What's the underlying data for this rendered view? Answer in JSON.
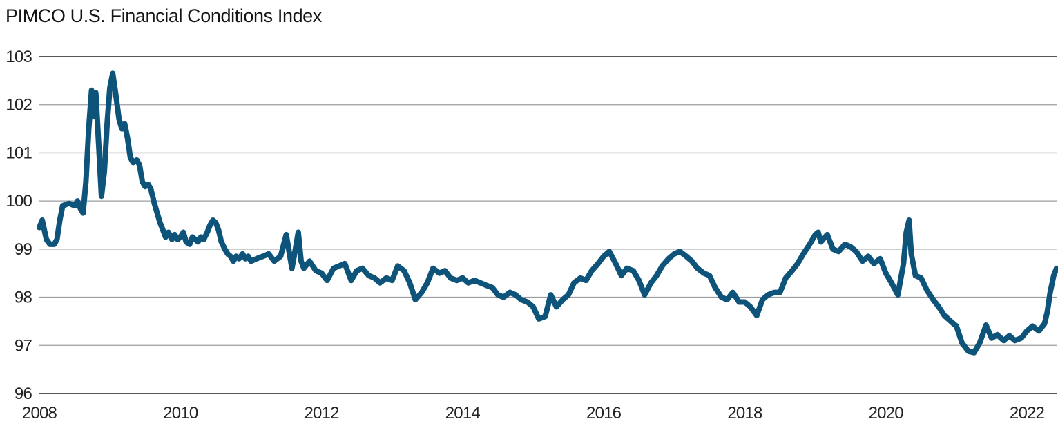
{
  "header": {
    "title": "PIMCO U.S. Financial Conditions Index"
  },
  "colors": {
    "line": "#0E547A",
    "grid_inner": "#9b9da0",
    "grid_frame": "#54565a",
    "tick_text": "#232323",
    "title_text": "#141414",
    "background": "#ffffff"
  },
  "chart_data": {
    "type": "line",
    "title": "PIMCO U.S. Financial Conditions Index",
    "xlabel": "",
    "ylabel": "",
    "legend": "none",
    "grid": "horizontal",
    "xlim": [
      2008,
      2022.45
    ],
    "ylim": [
      96,
      103
    ],
    "x_ticks": [
      "2008",
      "2010",
      "2012",
      "2014",
      "2016",
      "2018",
      "2020",
      "2022"
    ],
    "y_ticks": [
      "103",
      "102",
      "101",
      "100",
      "99",
      "98",
      "97",
      "96"
    ],
    "series": [
      {
        "name": "PIMCO U.S. Financial Conditions Index",
        "color": "#0E547A",
        "points": [
          [
            2008.0,
            99.45
          ],
          [
            2008.04,
            99.6
          ],
          [
            2008.1,
            99.2
          ],
          [
            2008.15,
            99.1
          ],
          [
            2008.21,
            99.1
          ],
          [
            2008.25,
            99.2
          ],
          [
            2008.29,
            99.6
          ],
          [
            2008.33,
            99.9
          ],
          [
            2008.42,
            99.95
          ],
          [
            2008.5,
            99.9
          ],
          [
            2008.54,
            100.0
          ],
          [
            2008.58,
            99.85
          ],
          [
            2008.62,
            99.75
          ],
          [
            2008.66,
            100.4
          ],
          [
            2008.7,
            101.5
          ],
          [
            2008.74,
            102.3
          ],
          [
            2008.77,
            101.75
          ],
          [
            2008.8,
            102.25
          ],
          [
            2008.84,
            101.2
          ],
          [
            2008.88,
            100.1
          ],
          [
            2008.92,
            100.6
          ],
          [
            2008.96,
            101.6
          ],
          [
            2009.0,
            102.35
          ],
          [
            2009.04,
            102.65
          ],
          [
            2009.08,
            102.25
          ],
          [
            2009.13,
            101.7
          ],
          [
            2009.17,
            101.5
          ],
          [
            2009.21,
            101.6
          ],
          [
            2009.25,
            101.3
          ],
          [
            2009.29,
            100.9
          ],
          [
            2009.33,
            100.8
          ],
          [
            2009.38,
            100.85
          ],
          [
            2009.42,
            100.75
          ],
          [
            2009.46,
            100.4
          ],
          [
            2009.5,
            100.3
          ],
          [
            2009.54,
            100.35
          ],
          [
            2009.58,
            100.25
          ],
          [
            2009.63,
            99.95
          ],
          [
            2009.67,
            99.75
          ],
          [
            2009.71,
            99.55
          ],
          [
            2009.75,
            99.4
          ],
          [
            2009.79,
            99.25
          ],
          [
            2009.83,
            99.35
          ],
          [
            2009.88,
            99.2
          ],
          [
            2009.92,
            99.3
          ],
          [
            2009.96,
            99.2
          ],
          [
            2010.0,
            99.25
          ],
          [
            2010.04,
            99.35
          ],
          [
            2010.08,
            99.15
          ],
          [
            2010.13,
            99.1
          ],
          [
            2010.17,
            99.25
          ],
          [
            2010.21,
            99.2
          ],
          [
            2010.25,
            99.15
          ],
          [
            2010.29,
            99.25
          ],
          [
            2010.33,
            99.2
          ],
          [
            2010.38,
            99.35
          ],
          [
            2010.42,
            99.5
          ],
          [
            2010.46,
            99.6
          ],
          [
            2010.5,
            99.55
          ],
          [
            2010.54,
            99.4
          ],
          [
            2010.58,
            99.15
          ],
          [
            2010.63,
            99.0
          ],
          [
            2010.67,
            98.9
          ],
          [
            2010.71,
            98.85
          ],
          [
            2010.75,
            98.75
          ],
          [
            2010.79,
            98.85
          ],
          [
            2010.83,
            98.8
          ],
          [
            2010.88,
            98.9
          ],
          [
            2010.92,
            98.8
          ],
          [
            2010.96,
            98.85
          ],
          [
            2011.0,
            98.75
          ],
          [
            2011.08,
            98.8
          ],
          [
            2011.17,
            98.85
          ],
          [
            2011.25,
            98.9
          ],
          [
            2011.33,
            98.75
          ],
          [
            2011.42,
            98.85
          ],
          [
            2011.5,
            99.3
          ],
          [
            2011.54,
            98.95
          ],
          [
            2011.58,
            98.6
          ],
          [
            2011.63,
            99.0
          ],
          [
            2011.67,
            99.35
          ],
          [
            2011.71,
            98.75
          ],
          [
            2011.75,
            98.6
          ],
          [
            2011.83,
            98.75
          ],
          [
            2011.92,
            98.55
          ],
          [
            2012.0,
            98.5
          ],
          [
            2012.08,
            98.35
          ],
          [
            2012.17,
            98.6
          ],
          [
            2012.25,
            98.65
          ],
          [
            2012.33,
            98.7
          ],
          [
            2012.42,
            98.35
          ],
          [
            2012.5,
            98.55
          ],
          [
            2012.58,
            98.6
          ],
          [
            2012.67,
            98.45
          ],
          [
            2012.75,
            98.4
          ],
          [
            2012.83,
            98.3
          ],
          [
            2012.92,
            98.4
          ],
          [
            2013.0,
            98.35
          ],
          [
            2013.08,
            98.65
          ],
          [
            2013.17,
            98.55
          ],
          [
            2013.25,
            98.3
          ],
          [
            2013.33,
            97.95
          ],
          [
            2013.42,
            98.1
          ],
          [
            2013.5,
            98.3
          ],
          [
            2013.58,
            98.6
          ],
          [
            2013.67,
            98.5
          ],
          [
            2013.75,
            98.55
          ],
          [
            2013.83,
            98.4
          ],
          [
            2013.92,
            98.35
          ],
          [
            2014.0,
            98.4
          ],
          [
            2014.08,
            98.3
          ],
          [
            2014.17,
            98.35
          ],
          [
            2014.25,
            98.3
          ],
          [
            2014.33,
            98.25
          ],
          [
            2014.42,
            98.2
          ],
          [
            2014.5,
            98.05
          ],
          [
            2014.58,
            98.0
          ],
          [
            2014.67,
            98.1
          ],
          [
            2014.75,
            98.05
          ],
          [
            2014.83,
            97.95
          ],
          [
            2014.92,
            97.9
          ],
          [
            2015.0,
            97.8
          ],
          [
            2015.08,
            97.55
          ],
          [
            2015.17,
            97.6
          ],
          [
            2015.25,
            98.05
          ],
          [
            2015.33,
            97.8
          ],
          [
            2015.42,
            97.95
          ],
          [
            2015.5,
            98.05
          ],
          [
            2015.58,
            98.3
          ],
          [
            2015.67,
            98.4
          ],
          [
            2015.75,
            98.35
          ],
          [
            2015.83,
            98.55
          ],
          [
            2015.92,
            98.7
          ],
          [
            2016.0,
            98.85
          ],
          [
            2016.08,
            98.95
          ],
          [
            2016.17,
            98.7
          ],
          [
            2016.25,
            98.45
          ],
          [
            2016.33,
            98.6
          ],
          [
            2016.42,
            98.55
          ],
          [
            2016.5,
            98.35
          ],
          [
            2016.58,
            98.05
          ],
          [
            2016.67,
            98.3
          ],
          [
            2016.75,
            98.45
          ],
          [
            2016.83,
            98.65
          ],
          [
            2016.92,
            98.8
          ],
          [
            2017.0,
            98.9
          ],
          [
            2017.08,
            98.95
          ],
          [
            2017.17,
            98.85
          ],
          [
            2017.25,
            98.75
          ],
          [
            2017.33,
            98.6
          ],
          [
            2017.42,
            98.5
          ],
          [
            2017.5,
            98.45
          ],
          [
            2017.58,
            98.2
          ],
          [
            2017.67,
            98.0
          ],
          [
            2017.75,
            97.95
          ],
          [
            2017.83,
            98.1
          ],
          [
            2017.92,
            97.9
          ],
          [
            2018.0,
            97.9
          ],
          [
            2018.08,
            97.8
          ],
          [
            2018.17,
            97.62
          ],
          [
            2018.25,
            97.95
          ],
          [
            2018.33,
            98.05
          ],
          [
            2018.42,
            98.1
          ],
          [
            2018.5,
            98.1
          ],
          [
            2018.58,
            98.4
          ],
          [
            2018.67,
            98.55
          ],
          [
            2018.75,
            98.7
          ],
          [
            2018.83,
            98.9
          ],
          [
            2018.92,
            99.1
          ],
          [
            2019.0,
            99.3
          ],
          [
            2019.04,
            99.35
          ],
          [
            2019.08,
            99.15
          ],
          [
            2019.17,
            99.3
          ],
          [
            2019.25,
            99.0
          ],
          [
            2019.33,
            98.95
          ],
          [
            2019.42,
            99.1
          ],
          [
            2019.5,
            99.05
          ],
          [
            2019.58,
            98.95
          ],
          [
            2019.67,
            98.75
          ],
          [
            2019.75,
            98.85
          ],
          [
            2019.83,
            98.7
          ],
          [
            2019.92,
            98.8
          ],
          [
            2020.0,
            98.5
          ],
          [
            2020.08,
            98.3
          ],
          [
            2020.17,
            98.05
          ],
          [
            2020.25,
            98.7
          ],
          [
            2020.29,
            99.35
          ],
          [
            2020.33,
            99.6
          ],
          [
            2020.36,
            98.9
          ],
          [
            2020.42,
            98.45
          ],
          [
            2020.5,
            98.4
          ],
          [
            2020.58,
            98.15
          ],
          [
            2020.67,
            97.95
          ],
          [
            2020.75,
            97.8
          ],
          [
            2020.83,
            97.62
          ],
          [
            2020.92,
            97.5
          ],
          [
            2021.0,
            97.4
          ],
          [
            2021.08,
            97.05
          ],
          [
            2021.17,
            96.88
          ],
          [
            2021.25,
            96.85
          ],
          [
            2021.33,
            97.05
          ],
          [
            2021.42,
            97.42
          ],
          [
            2021.5,
            97.15
          ],
          [
            2021.58,
            97.22
          ],
          [
            2021.67,
            97.1
          ],
          [
            2021.75,
            97.2
          ],
          [
            2021.83,
            97.1
          ],
          [
            2021.92,
            97.15
          ],
          [
            2022.0,
            97.3
          ],
          [
            2022.08,
            97.4
          ],
          [
            2022.17,
            97.3
          ],
          [
            2022.25,
            97.45
          ],
          [
            2022.29,
            97.7
          ],
          [
            2022.33,
            98.1
          ],
          [
            2022.38,
            98.45
          ],
          [
            2022.42,
            98.6
          ]
        ]
      }
    ]
  }
}
